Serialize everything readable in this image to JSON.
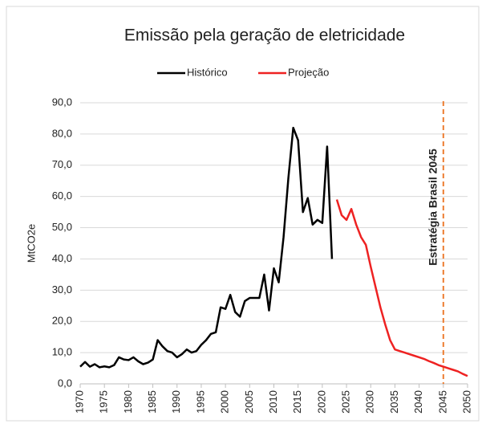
{
  "chart_data": {
    "type": "line",
    "title": "Emissão pela geração de eletricidade",
    "y_label": "MtCO2e",
    "x": [
      1970,
      1971,
      1972,
      1973,
      1974,
      1975,
      1976,
      1977,
      1978,
      1979,
      1980,
      1981,
      1982,
      1983,
      1984,
      1985,
      1986,
      1987,
      1988,
      1989,
      1990,
      1991,
      1992,
      1993,
      1994,
      1995,
      1996,
      1997,
      1998,
      1999,
      2000,
      2001,
      2002,
      2003,
      2004,
      2005,
      2006,
      2007,
      2008,
      2009,
      2010,
      2011,
      2012,
      2013,
      2014,
      2015,
      2016,
      2017,
      2018,
      2019,
      2020,
      2021,
      2022,
      2023,
      2024,
      2025,
      2026,
      2027,
      2028,
      2029,
      2030,
      2031,
      2032,
      2033,
      2034,
      2035,
      2036,
      2037,
      2038,
      2039,
      2040,
      2041,
      2042,
      2043,
      2044,
      2045,
      2046,
      2047,
      2048,
      2049,
      2050
    ],
    "series": [
      {
        "name": "Histórico",
        "color": "#000000",
        "values": [
          5.5,
          7,
          5.5,
          6.3,
          5.3,
          5.6,
          5.3,
          6,
          8.5,
          7.8,
          7.6,
          8.5,
          7.2,
          6.3,
          6.8,
          7.8,
          14,
          12,
          10.5,
          10,
          8.5,
          9.5,
          11,
          10,
          10.5,
          12.5,
          14,
          16,
          16.5,
          24.5,
          24,
          28.5,
          23,
          21.5,
          26.5,
          27.5,
          27.5,
          27.5,
          35,
          23.5,
          37,
          32.5,
          47,
          66,
          82,
          78,
          55,
          59.5,
          51,
          52.5,
          51.5,
          76,
          40,
          null,
          null,
          null,
          null,
          null,
          null,
          null,
          null,
          null,
          null,
          null,
          null,
          null,
          null,
          null,
          null,
          null,
          null,
          null,
          null,
          null,
          null,
          null,
          null,
          null,
          null,
          null,
          null
        ]
      },
      {
        "name": "Projeção",
        "color": "#ee2222",
        "values": [
          null,
          null,
          null,
          null,
          null,
          null,
          null,
          null,
          null,
          null,
          null,
          null,
          null,
          null,
          null,
          null,
          null,
          null,
          null,
          null,
          null,
          null,
          null,
          null,
          null,
          null,
          null,
          null,
          null,
          null,
          null,
          null,
          null,
          null,
          null,
          null,
          null,
          null,
          null,
          null,
          null,
          null,
          null,
          null,
          null,
          null,
          null,
          null,
          null,
          null,
          null,
          null,
          null,
          59,
          54,
          52.5,
          56,
          51,
          47,
          44.5,
          37.5,
          31,
          24.5,
          19,
          14,
          11,
          10.5,
          10,
          9.5,
          9,
          8.5,
          8,
          7.3,
          6.7,
          6,
          5.5,
          5,
          4.5,
          4,
          3.2,
          2.5
        ]
      }
    ],
    "xlim": [
      1970,
      2050
    ],
    "xticks": [
      1970,
      1975,
      1980,
      1985,
      1990,
      1995,
      2000,
      2005,
      2010,
      2015,
      2020,
      2025,
      2030,
      2035,
      2040,
      2045,
      2050
    ],
    "ylim": [
      0,
      90
    ],
    "yticks": [
      {
        "value": 0,
        "label": "0,0"
      },
      {
        "value": 10,
        "label": "10,0"
      },
      {
        "value": 20,
        "label": "20,0"
      },
      {
        "value": 30,
        "label": "30,0"
      },
      {
        "value": 40,
        "label": "40,0"
      },
      {
        "value": 50,
        "label": "50,0"
      },
      {
        "value": 60,
        "label": "60,0"
      },
      {
        "value": 70,
        "label": "70,0"
      },
      {
        "value": 80,
        "label": "80,0"
      },
      {
        "value": 90,
        "label": "90,0"
      }
    ],
    "grid": true,
    "legend": "top",
    "annotation": {
      "text": "Estratégia Brasil 2045",
      "x": 2045,
      "color": "#ed7d31"
    }
  }
}
